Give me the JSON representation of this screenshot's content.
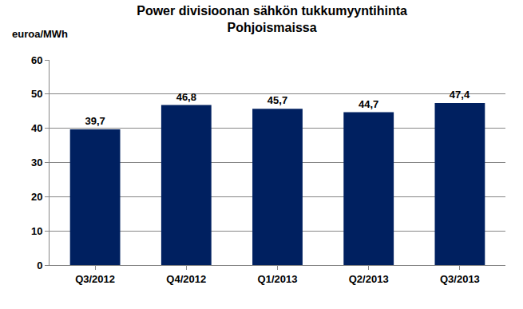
{
  "chart_data": {
    "type": "bar",
    "title": "Power divisioonan sähkön tukkumyyntihinta\nPohjoismaissa",
    "y_label": "euroa/MWh",
    "categories": [
      "Q3/2012",
      "Q4/2012",
      "Q1/2013",
      "Q2/2013",
      "Q3/2013"
    ],
    "values": [
      39.7,
      46.8,
      45.7,
      44.7,
      47.4
    ],
    "value_labels": [
      "39,7",
      "46,8",
      "45,7",
      "44,7",
      "47,4"
    ],
    "color": "#002060",
    "ylim": [
      0,
      60
    ],
    "yticks": [
      0,
      10,
      20,
      30,
      40,
      50,
      60
    ],
    "grid": true,
    "data_labels": true
  }
}
